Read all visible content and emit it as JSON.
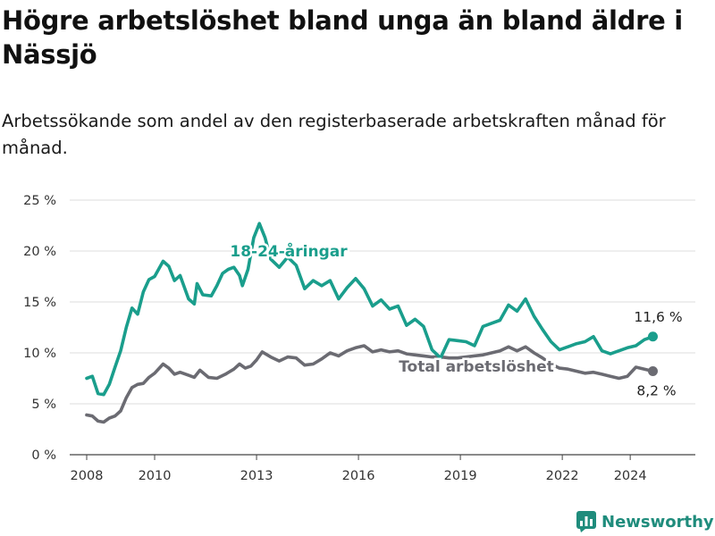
{
  "title": "Högre arbetslöshet bland unga än bland äldre i Nässjö",
  "subtitle": "Arbetssökande som andel av den registerbaserade arbetskraften månad för månad.",
  "brand": {
    "name": "Newsworthy",
    "icon": "newsworthy-logo-icon",
    "color": "#1f8c7c"
  },
  "chart_data": {
    "type": "line",
    "title": "Högre arbetslöshet bland unga än bland äldre i Nässjö",
    "subtitle": "Arbetssökande som andel av den registerbaserade arbetskraften månad för månad.",
    "xlabel": "",
    "ylabel": "",
    "x_ticks": [
      "2008",
      "2010",
      "2013",
      "2016",
      "2019",
      "2022",
      "2024"
    ],
    "y_ticks": [
      "0 %",
      "5 %",
      "10 %",
      "15 %",
      "20 %",
      "25 %"
    ],
    "ylim": [
      0,
      25
    ],
    "xlim": [
      "2007-07",
      "2025-12"
    ],
    "grid": "horizontal",
    "legend": "direct labels on lines",
    "series": [
      {
        "name": "18-24-åringar",
        "color": "#1a9e8c",
        "end_label": "11,6 %",
        "points": [
          [
            "2008-01",
            7.5
          ],
          [
            "2008-03",
            7.7
          ],
          [
            "2008-05",
            6.0
          ],
          [
            "2008-07",
            5.9
          ],
          [
            "2008-09",
            6.9
          ],
          [
            "2008-11",
            8.6
          ],
          [
            "2009-01",
            10.2
          ],
          [
            "2009-03",
            12.5
          ],
          [
            "2009-05",
            14.4
          ],
          [
            "2009-07",
            13.8
          ],
          [
            "2009-09",
            16.0
          ],
          [
            "2009-11",
            17.2
          ],
          [
            "2010-01",
            17.5
          ],
          [
            "2010-04",
            19.0
          ],
          [
            "2010-06",
            18.5
          ],
          [
            "2010-08",
            17.1
          ],
          [
            "2010-10",
            17.6
          ],
          [
            "2011-01",
            15.3
          ],
          [
            "2011-03",
            14.8
          ],
          [
            "2011-04",
            16.8
          ],
          [
            "2011-06",
            15.7
          ],
          [
            "2011-09",
            15.6
          ],
          [
            "2011-11",
            16.6
          ],
          [
            "2012-01",
            17.8
          ],
          [
            "2012-03",
            18.2
          ],
          [
            "2012-05",
            18.4
          ],
          [
            "2012-07",
            17.6
          ],
          [
            "2012-08",
            16.6
          ],
          [
            "2012-10",
            18.2
          ],
          [
            "2012-12",
            21.3
          ],
          [
            "2013-02",
            22.7
          ],
          [
            "2013-04",
            21.3
          ],
          [
            "2013-06",
            19.2
          ],
          [
            "2013-09",
            18.4
          ],
          [
            "2013-12",
            19.4
          ],
          [
            "2014-03",
            18.6
          ],
          [
            "2014-06",
            16.3
          ],
          [
            "2014-09",
            17.1
          ],
          [
            "2014-12",
            16.6
          ],
          [
            "2015-03",
            17.1
          ],
          [
            "2015-06",
            15.3
          ],
          [
            "2015-09",
            16.4
          ],
          [
            "2015-12",
            17.3
          ],
          [
            "2016-03",
            16.3
          ],
          [
            "2016-06",
            14.6
          ],
          [
            "2016-09",
            15.2
          ],
          [
            "2016-12",
            14.3
          ],
          [
            "2017-03",
            14.6
          ],
          [
            "2017-06",
            12.7
          ],
          [
            "2017-09",
            13.3
          ],
          [
            "2017-12",
            12.6
          ],
          [
            "2018-03",
            10.3
          ],
          [
            "2018-06",
            9.5
          ],
          [
            "2018-09",
            11.3
          ],
          [
            "2018-12",
            11.2
          ],
          [
            "2019-03",
            11.1
          ],
          [
            "2019-06",
            10.7
          ],
          [
            "2019-09",
            12.6
          ],
          [
            "2019-12",
            12.9
          ],
          [
            "2020-03",
            13.2
          ],
          [
            "2020-06",
            14.7
          ],
          [
            "2020-09",
            14.1
          ],
          [
            "2020-12",
            15.3
          ],
          [
            "2021-03",
            13.6
          ],
          [
            "2021-06",
            12.3
          ],
          [
            "2021-09",
            11.1
          ],
          [
            "2021-12",
            10.3
          ],
          [
            "2022-03",
            10.6
          ],
          [
            "2022-06",
            10.9
          ],
          [
            "2022-09",
            11.1
          ],
          [
            "2022-12",
            11.6
          ],
          [
            "2023-03",
            10.2
          ],
          [
            "2023-06",
            9.9
          ],
          [
            "2023-09",
            10.2
          ],
          [
            "2023-12",
            10.5
          ],
          [
            "2024-03",
            10.7
          ],
          [
            "2024-06",
            11.3
          ],
          [
            "2024-09",
            11.6
          ]
        ]
      },
      {
        "name": "Total arbetslöshet",
        "color": "#6b6b72",
        "end_label": "8,2 %",
        "points": [
          [
            "2008-01",
            3.9
          ],
          [
            "2008-03",
            3.8
          ],
          [
            "2008-05",
            3.3
          ],
          [
            "2008-07",
            3.2
          ],
          [
            "2008-09",
            3.6
          ],
          [
            "2008-11",
            3.8
          ],
          [
            "2009-01",
            4.3
          ],
          [
            "2009-03",
            5.6
          ],
          [
            "2009-05",
            6.6
          ],
          [
            "2009-07",
            6.9
          ],
          [
            "2009-09",
            7.0
          ],
          [
            "2009-11",
            7.6
          ],
          [
            "2010-01",
            8.0
          ],
          [
            "2010-04",
            8.9
          ],
          [
            "2010-06",
            8.5
          ],
          [
            "2010-08",
            7.9
          ],
          [
            "2010-10",
            8.1
          ],
          [
            "2011-01",
            7.8
          ],
          [
            "2011-03",
            7.6
          ],
          [
            "2011-05",
            8.3
          ],
          [
            "2011-08",
            7.6
          ],
          [
            "2011-11",
            7.5
          ],
          [
            "2012-02",
            7.9
          ],
          [
            "2012-05",
            8.4
          ],
          [
            "2012-07",
            8.9
          ],
          [
            "2012-09",
            8.5
          ],
          [
            "2012-11",
            8.7
          ],
          [
            "2013-01",
            9.3
          ],
          [
            "2013-03",
            10.1
          ],
          [
            "2013-06",
            9.6
          ],
          [
            "2013-09",
            9.2
          ],
          [
            "2013-12",
            9.6
          ],
          [
            "2014-03",
            9.5
          ],
          [
            "2014-06",
            8.8
          ],
          [
            "2014-09",
            8.9
          ],
          [
            "2014-12",
            9.4
          ],
          [
            "2015-03",
            10.0
          ],
          [
            "2015-06",
            9.7
          ],
          [
            "2015-09",
            10.2
          ],
          [
            "2015-12",
            10.5
          ],
          [
            "2016-03",
            10.7
          ],
          [
            "2016-06",
            10.1
          ],
          [
            "2016-09",
            10.3
          ],
          [
            "2016-12",
            10.1
          ],
          [
            "2017-03",
            10.2
          ],
          [
            "2017-06",
            9.9
          ],
          [
            "2017-09",
            9.8
          ],
          [
            "2017-12",
            9.7
          ],
          [
            "2018-03",
            9.6
          ],
          [
            "2018-06",
            9.6
          ],
          [
            "2018-09",
            9.5
          ],
          [
            "2018-12",
            9.5
          ],
          [
            "2019-03",
            9.6
          ],
          [
            "2019-06",
            9.7
          ],
          [
            "2019-09",
            9.8
          ],
          [
            "2019-12",
            10.0
          ],
          [
            "2020-03",
            10.2
          ],
          [
            "2020-06",
            10.6
          ],
          [
            "2020-09",
            10.2
          ],
          [
            "2020-12",
            10.6
          ],
          [
            "2021-03",
            10.0
          ],
          [
            "2021-06",
            9.5
          ],
          [
            "2021-09",
            8.9
          ],
          [
            "2021-12",
            8.5
          ],
          [
            "2022-03",
            8.4
          ],
          [
            "2022-06",
            8.2
          ],
          [
            "2022-09",
            8.0
          ],
          [
            "2022-12",
            8.1
          ],
          [
            "2023-03",
            7.9
          ],
          [
            "2023-06",
            7.7
          ],
          [
            "2023-09",
            7.5
          ],
          [
            "2023-12",
            7.7
          ],
          [
            "2024-03",
            8.6
          ],
          [
            "2024-06",
            8.4
          ],
          [
            "2024-09",
            8.2
          ]
        ]
      }
    ]
  }
}
